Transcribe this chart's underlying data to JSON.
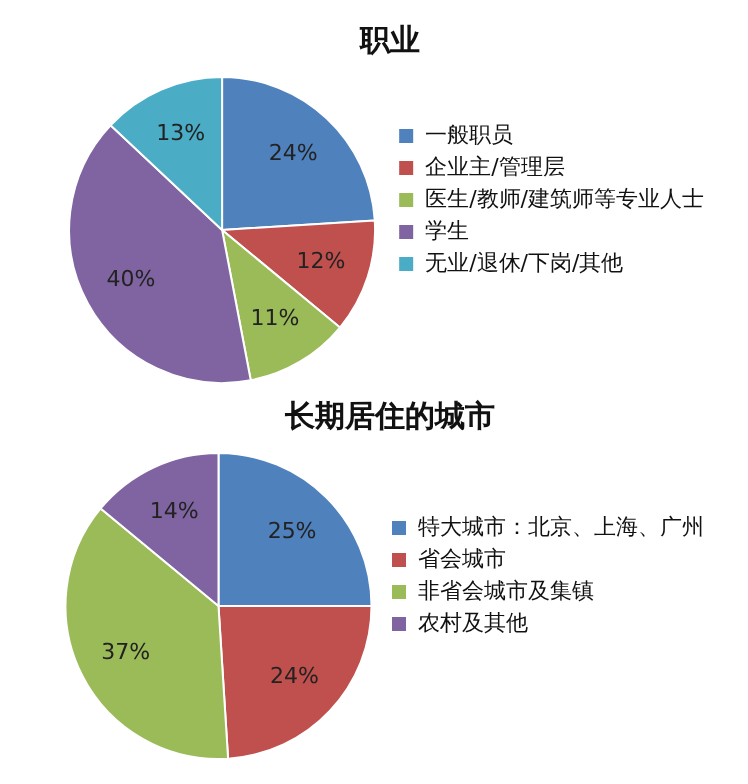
{
  "chart_data": [
    {
      "type": "pie",
      "title": "职业",
      "categories": [
        "一般职员",
        "企业主/管理层",
        "医生/教师/建筑师等专业人士",
        "学生",
        "无业/退休/下岗/其他"
      ],
      "values": [
        24,
        12,
        11,
        40,
        13
      ],
      "value_labels": [
        "24%",
        "12%",
        "11%",
        "40%",
        "13%"
      ],
      "colors": [
        "#4f81bd",
        "#c0504d",
        "#9bbb59",
        "#8064a2",
        "#4bacc6"
      ],
      "legend": "right"
    },
    {
      "type": "pie",
      "title": "长期居住的城市",
      "categories": [
        "特大城市：北京、上海、广州",
        "省会城市",
        "非省会城市及集镇",
        "农村及其他"
      ],
      "values": [
        25,
        24,
        37,
        14
      ],
      "value_labels": [
        "25%",
        "24%",
        "37%",
        "14%"
      ],
      "colors": [
        "#4f81bd",
        "#c0504d",
        "#9bbb59",
        "#8064a2"
      ],
      "legend": "right"
    }
  ]
}
